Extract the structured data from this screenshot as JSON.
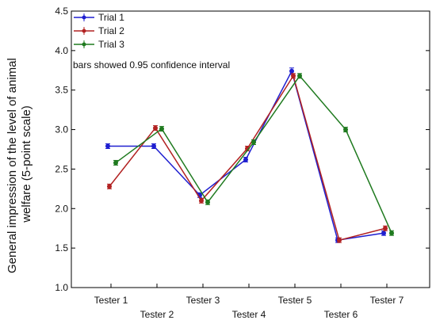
{
  "chart_data": {
    "type": "line",
    "title": "",
    "xlabel": "",
    "ylabel": "General impression of the level of animal welfare (5-point scale)",
    "ylabel_lines": [
      "General impression of the level of animal",
      "welfare (5-point scale)"
    ],
    "ylim": [
      1.0,
      4.5
    ],
    "yticks": [
      "1.0",
      "1.5",
      "2.0",
      "2.5",
      "3.0",
      "3.5",
      "4.0",
      "4.5"
    ],
    "categories": [
      "Tester 1",
      "Tester 2",
      "Tester 3",
      "Tester 4",
      "Tester 5",
      "Tester 6",
      "Tester 7"
    ],
    "grid": false,
    "legend_position": "top-left",
    "note": "bars showed 0.95 confidence interval",
    "series": [
      {
        "name": "Trial 1",
        "color": "#1f1fd0",
        "values": [
          2.79,
          2.79,
          2.17,
          2.62,
          3.74,
          1.6,
          1.69
        ],
        "errors": [
          0.03,
          0.03,
          0.03,
          0.03,
          0.04,
          0.03,
          0.03
        ]
      },
      {
        "name": "Trial 2",
        "color": "#b22222",
        "values": [
          2.28,
          3.02,
          2.1,
          2.76,
          3.68,
          1.6,
          1.75
        ],
        "errors": [
          0.03,
          0.03,
          0.03,
          0.03,
          0.03,
          0.03,
          0.03
        ]
      },
      {
        "name": "Trial 3",
        "color": "#1f7a1f",
        "values": [
          2.58,
          3.01,
          2.08,
          2.84,
          3.68,
          3.0,
          1.69
        ],
        "errors": [
          0.03,
          0.03,
          0.03,
          0.03,
          0.03,
          0.03,
          0.03
        ]
      }
    ]
  }
}
